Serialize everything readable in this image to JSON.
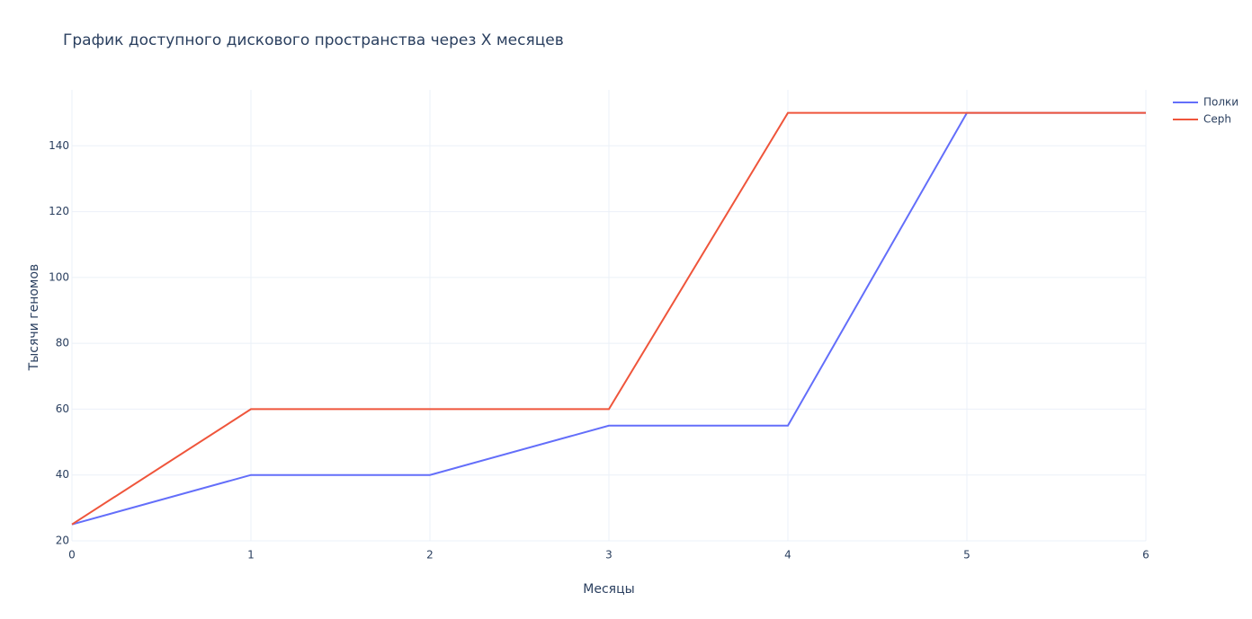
{
  "chart_data": {
    "type": "line",
    "title": "График доступного дискового пространства через X месяцев",
    "x_label": "Месяцы",
    "y_label": "Тысячи геномов",
    "x": [
      0,
      1,
      2,
      3,
      4,
      5,
      6
    ],
    "series": [
      {
        "name": "Полки",
        "color": "#636efa",
        "values": [
          25,
          40,
          40,
          55,
          55,
          150,
          150
        ]
      },
      {
        "name": "Ceph",
        "color": "#EF553B",
        "values": [
          25,
          60,
          60,
          60,
          150,
          150,
          150
        ]
      }
    ],
    "xlim": [
      0,
      6
    ],
    "xticks": [
      0,
      1,
      2,
      3,
      4,
      5,
      6
    ],
    "ylim": [
      20,
      157
    ],
    "yticks": [
      20,
      40,
      60,
      80,
      100,
      120,
      140
    ],
    "grid": true,
    "legend": "top-right"
  }
}
